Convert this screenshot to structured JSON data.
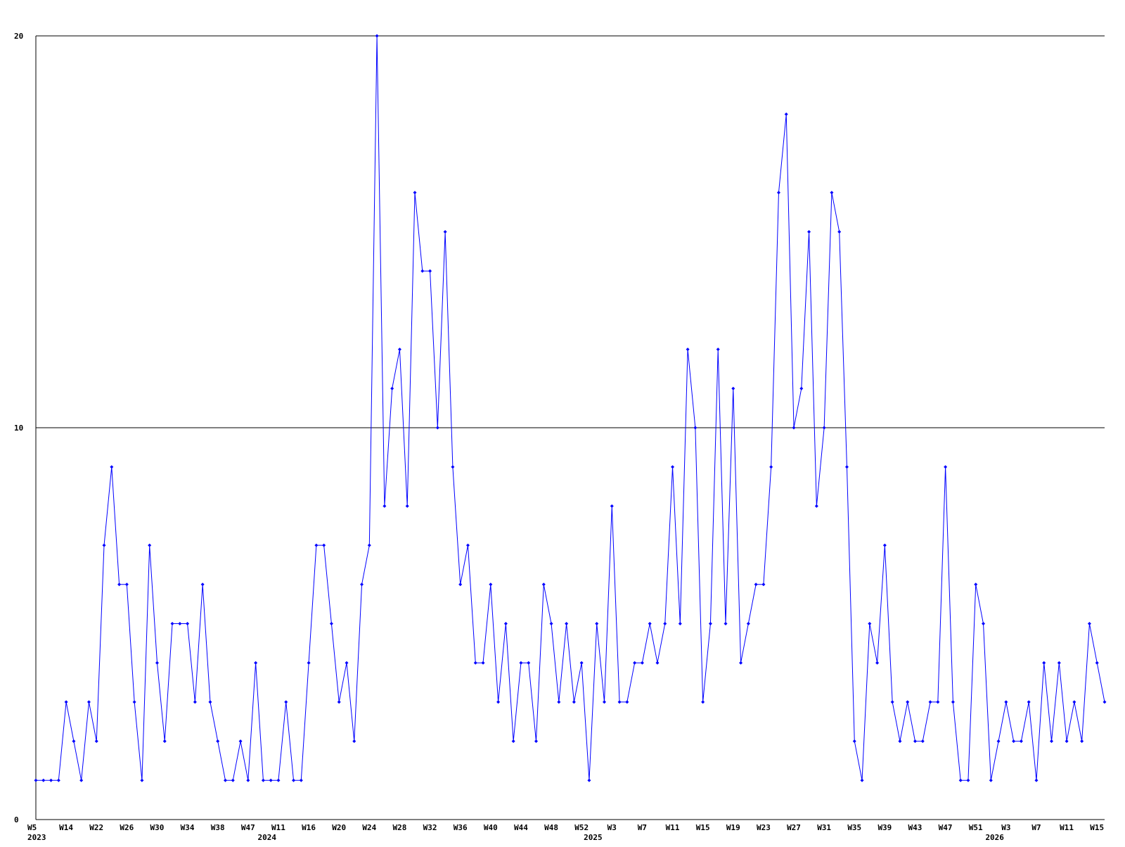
{
  "chart_data": {
    "type": "line",
    "color": "#0000ff",
    "grid": true,
    "ylim": [
      0,
      20
    ],
    "yticks": [
      0,
      10,
      20
    ],
    "categories": [
      "W5",
      null,
      null,
      null,
      "W14",
      null,
      null,
      null,
      "W22",
      null,
      null,
      null,
      "W26",
      null,
      null,
      null,
      "W30",
      null,
      null,
      null,
      "W34",
      null,
      null,
      null,
      "W38",
      null,
      null,
      null,
      "W47",
      null,
      null,
      null,
      "W11",
      null,
      null,
      null,
      "W16",
      null,
      null,
      null,
      "W20",
      null,
      null,
      null,
      "W24",
      null,
      null,
      null,
      "W28",
      null,
      null,
      null,
      "W32",
      null,
      null,
      null,
      "W36",
      null,
      null,
      null,
      "W40",
      null,
      null,
      null,
      "W44",
      null,
      null,
      null,
      "W48",
      null,
      null,
      null,
      "W52",
      null,
      null,
      null,
      "W3",
      null,
      null,
      null,
      "W7",
      null,
      null,
      null,
      "W11",
      null,
      null,
      null,
      "W15",
      null,
      null,
      null,
      "W19",
      null,
      null,
      null,
      "W23",
      null,
      null,
      null,
      "W27",
      null,
      null,
      null,
      "W31",
      null,
      null,
      null,
      "W35",
      null,
      null,
      null,
      "W39",
      null,
      null,
      null,
      "W43",
      null,
      null,
      null,
      "W47",
      null,
      null,
      null,
      "W51",
      null,
      null,
      null,
      "W3",
      null,
      null,
      null,
      "W7",
      null,
      null,
      null,
      "W11",
      null,
      null,
      null,
      "W15",
      null
    ],
    "values": [
      1,
      1,
      1,
      1,
      3,
      2,
      1,
      3,
      2,
      7,
      9,
      6,
      6,
      3,
      1,
      7,
      4,
      2,
      5,
      5,
      5,
      3,
      6,
      3,
      2,
      1,
      1,
      2,
      1,
      4,
      1,
      1,
      1,
      3,
      1,
      1,
      4,
      7,
      7,
      5,
      3,
      4,
      2,
      6,
      7,
      20,
      8,
      11,
      12,
      8,
      16,
      14,
      14,
      10,
      15,
      9,
      6,
      7,
      4,
      4,
      6,
      3,
      5,
      2,
      4,
      4,
      2,
      6,
      5,
      3,
      5,
      3,
      4,
      1,
      5,
      3,
      8,
      3,
      3,
      4,
      4,
      5,
      4,
      5,
      9,
      5,
      12,
      10,
      3,
      5,
      12,
      5,
      11,
      4,
      5,
      6,
      6,
      9,
      16,
      18,
      10,
      11,
      15,
      8,
      10,
      16,
      15,
      9,
      2,
      1,
      5,
      4,
      7,
      3,
      2,
      3,
      2,
      2,
      3,
      3,
      9,
      3,
      1,
      1,
      6,
      5,
      1,
      2,
      3,
      2,
      2,
      3,
      1,
      4,
      2,
      4,
      2,
      3,
      2,
      5,
      4,
      3
    ],
    "year_labels": [
      {
        "label": "2023",
        "index": 0
      },
      {
        "label": "2024",
        "index": 30.5
      },
      {
        "label": "2025",
        "index": 73.5
      },
      {
        "label": "2026",
        "index": 126.5
      }
    ]
  }
}
